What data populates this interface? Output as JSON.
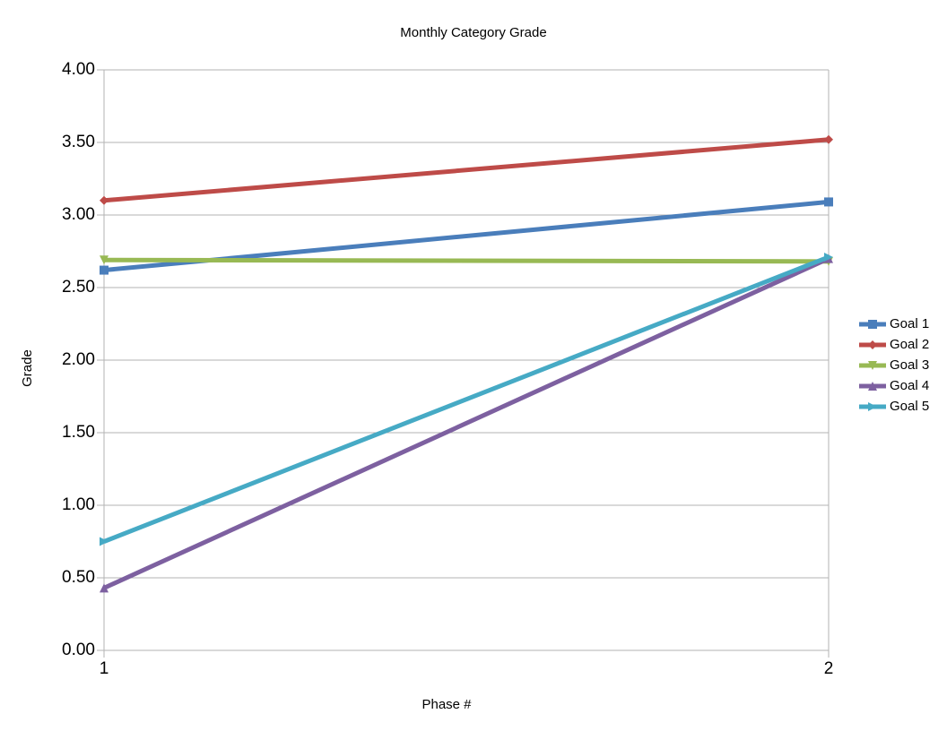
{
  "chart_data": {
    "type": "line",
    "title": "Monthly Category Grade",
    "x_label": "Phase #",
    "y_label": "Grade",
    "x": [
      1,
      2
    ],
    "xlim": [
      1,
      2
    ],
    "xticks": [
      1,
      2
    ],
    "ylim": [
      0,
      4
    ],
    "yticks": [
      {
        "value": 0,
        "label": "0.00"
      },
      {
        "value": 0.5,
        "label": "0.50"
      },
      {
        "value": 1,
        "label": "1.00"
      },
      {
        "value": 1.5,
        "label": "1.50"
      },
      {
        "value": 2,
        "label": "2.00"
      },
      {
        "value": 2.5,
        "label": "2.50"
      },
      {
        "value": 3,
        "label": "3.00"
      },
      {
        "value": 3.5,
        "label": "3.50"
      },
      {
        "value": 4,
        "label": "4.00"
      }
    ],
    "grid": true,
    "legend": "right",
    "series": [
      {
        "name": "Goal 1",
        "color": "#4a7ebb",
        "marker": "square",
        "values": [
          2.62,
          3.09
        ]
      },
      {
        "name": "Goal 2",
        "color": "#be4b48",
        "marker": "diamond",
        "values": [
          3.1,
          3.52
        ]
      },
      {
        "name": "Goal 3",
        "color": "#98b954",
        "marker": "triangle-down",
        "values": [
          2.69,
          2.68
        ]
      },
      {
        "name": "Goal 4",
        "color": "#7d60a0",
        "marker": "triangle-up",
        "values": [
          0.43,
          2.7
        ]
      },
      {
        "name": "Goal 5",
        "color": "#46aac5",
        "marker": "triangle-right",
        "values": [
          0.75,
          2.71
        ]
      }
    ]
  }
}
